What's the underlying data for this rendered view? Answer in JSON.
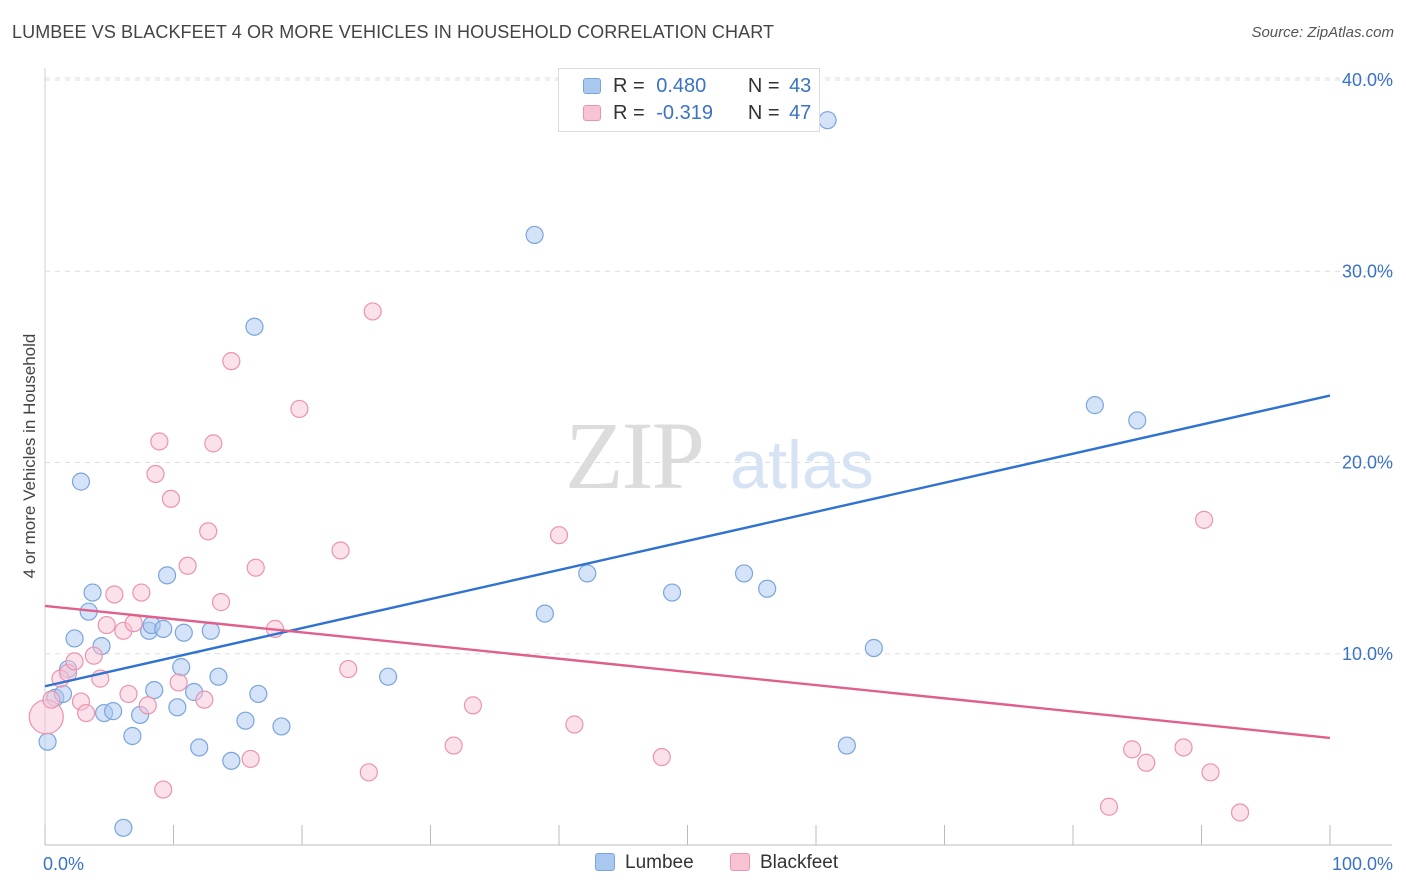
{
  "title": "LUMBEE VS BLACKFEET 4 OR MORE VEHICLES IN HOUSEHOLD CORRELATION CHART",
  "source": "Source: ZipAtlas.com",
  "watermark": {
    "zip": "ZIP",
    "atlas": "atlas"
  },
  "legend": {
    "rows": [
      {
        "r_label": "R =",
        "r_value": "0.480",
        "n_label": "N =",
        "n_value": "43"
      },
      {
        "r_label": "R =",
        "r_value": "-0.319",
        "n_label": "N =",
        "n_value": "47"
      }
    ]
  },
  "chart_data": {
    "type": "scatter",
    "ylabel": "4 or more Vehicles in Household",
    "xlim": [
      0,
      100
    ],
    "ylim": [
      0,
      40
    ],
    "x_tick_labels": [
      {
        "value": 0,
        "label": "0.0%"
      },
      {
        "value": 100,
        "label": "100.0%"
      }
    ],
    "y_tick_labels": [
      {
        "value": 10,
        "label": "10.0%"
      },
      {
        "value": 20,
        "label": "20.0%"
      },
      {
        "value": 30,
        "label": "30.0%"
      },
      {
        "value": 40,
        "label": "40.0%"
      }
    ],
    "grid": true,
    "legend_position": "top-center",
    "series": [
      {
        "name": "Lumbee",
        "color": "#a9c8f0",
        "edge": "#7aa5dc",
        "line_color": "#2f72d0",
        "trend": [
          [
            0,
            8.3
          ],
          [
            100,
            23.5
          ]
        ],
        "points": [
          [
            0.2,
            5.4
          ],
          [
            0.8,
            7.7
          ],
          [
            1.4,
            7.9
          ],
          [
            1.8,
            9.2
          ],
          [
            2.3,
            10.8
          ],
          [
            2.8,
            19.0
          ],
          [
            3.4,
            12.2
          ],
          [
            3.7,
            13.2
          ],
          [
            4.4,
            10.4
          ],
          [
            4.6,
            6.9
          ],
          [
            5.3,
            7.0
          ],
          [
            6.1,
            0.9
          ],
          [
            6.8,
            5.7
          ],
          [
            7.4,
            6.8
          ],
          [
            8.1,
            11.2
          ],
          [
            8.3,
            11.5
          ],
          [
            8.5,
            8.1
          ],
          [
            9.2,
            11.3
          ],
          [
            9.5,
            14.1
          ],
          [
            10.3,
            7.2
          ],
          [
            10.6,
            9.3
          ],
          [
            10.8,
            11.1
          ],
          [
            11.6,
            8.0
          ],
          [
            12.0,
            5.1
          ],
          [
            12.9,
            11.2
          ],
          [
            13.5,
            8.8
          ],
          [
            14.5,
            4.4
          ],
          [
            15.6,
            6.5
          ],
          [
            16.3,
            27.1
          ],
          [
            16.6,
            7.9
          ],
          [
            18.4,
            6.2
          ],
          [
            26.7,
            8.8
          ],
          [
            38.1,
            31.9
          ],
          [
            38.9,
            12.1
          ],
          [
            42.2,
            14.2
          ],
          [
            48.8,
            13.2
          ],
          [
            54.4,
            14.2
          ],
          [
            56.2,
            13.4
          ],
          [
            60.9,
            37.9
          ],
          [
            62.4,
            5.2
          ],
          [
            64.5,
            10.3
          ],
          [
            81.7,
            23.0
          ],
          [
            85.0,
            22.2
          ]
        ]
      },
      {
        "name": "Blackfeet",
        "color": "#f8c3d3",
        "edge": "#ec93b0",
        "line_color": "#e0608d",
        "trend": [
          [
            0,
            12.5
          ],
          [
            100,
            5.6
          ]
        ],
        "points": [
          [
            0.1,
            6.7
          ],
          [
            0.5,
            7.6
          ],
          [
            1.2,
            8.7
          ],
          [
            1.8,
            9.0
          ],
          [
            2.3,
            9.6
          ],
          [
            2.8,
            7.5
          ],
          [
            3.2,
            6.9
          ],
          [
            3.8,
            9.9
          ],
          [
            4.3,
            8.7
          ],
          [
            4.8,
            11.5
          ],
          [
            5.4,
            13.1
          ],
          [
            6.1,
            11.2
          ],
          [
            6.5,
            7.9
          ],
          [
            6.9,
            11.6
          ],
          [
            7.5,
            13.2
          ],
          [
            8.0,
            7.3
          ],
          [
            8.6,
            19.4
          ],
          [
            8.9,
            21.1
          ],
          [
            9.2,
            2.9
          ],
          [
            9.8,
            18.1
          ],
          [
            10.4,
            8.5
          ],
          [
            11.1,
            14.6
          ],
          [
            12.4,
            7.6
          ],
          [
            12.7,
            16.4
          ],
          [
            13.1,
            21.0
          ],
          [
            13.7,
            12.7
          ],
          [
            14.5,
            25.3
          ],
          [
            16.0,
            4.5
          ],
          [
            16.4,
            14.5
          ],
          [
            17.9,
            11.3
          ],
          [
            19.8,
            22.8
          ],
          [
            23.0,
            15.4
          ],
          [
            23.6,
            9.2
          ],
          [
            25.2,
            3.8
          ],
          [
            25.5,
            27.9
          ],
          [
            31.8,
            5.2
          ],
          [
            33.3,
            7.3
          ],
          [
            40.0,
            16.2
          ],
          [
            41.2,
            6.3
          ],
          [
            48.0,
            4.6
          ],
          [
            82.8,
            2.0
          ],
          [
            84.6,
            5.0
          ],
          [
            85.7,
            4.3
          ],
          [
            88.6,
            5.1
          ],
          [
            90.2,
            17.0
          ],
          [
            90.7,
            3.8
          ],
          [
            93.0,
            1.7
          ]
        ]
      }
    ]
  }
}
